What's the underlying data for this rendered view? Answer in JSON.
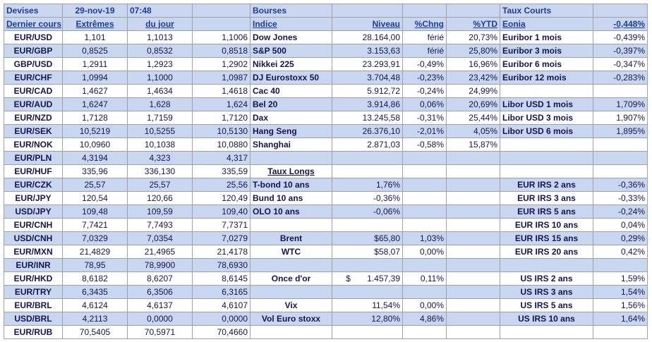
{
  "table": {
    "rows": [
      [
        "Devises",
        "29-nov-19",
        "07:48",
        null,
        "Bourses",
        null,
        null,
        null,
        "Taux Courts",
        null
      ],
      [
        "Dernier cours",
        "Extrêmes",
        "du jour",
        null,
        "Indice",
        "Niveau",
        "%Chng",
        "%YTD",
        "Eonia",
        "-0,448%"
      ],
      [
        "EUR/USD",
        "1,101",
        "1,1013",
        "1,1006",
        "Dow Jones",
        "28.164,00",
        "férié",
        "20,73%",
        "Euribor 1 mois",
        "-0,439%"
      ],
      [
        "EUR/GBP",
        "0,8525",
        "0,8532",
        "0,8518",
        "S&P 500",
        "3.153,63",
        "férié",
        "25,80%",
        "Euribor 3 mois",
        "-0,397%"
      ],
      [
        "GBP/USD",
        "1,2911",
        "1,2923",
        "1,2902",
        "Nikkei 225",
        "23.293,91",
        "-0,49%",
        "16,96%",
        "Euribor 6 mois",
        "-0,347%"
      ],
      [
        "EUR/CHF",
        "1,0994",
        "1,1000",
        "1,0987",
        "DJ Eurostoxx 50",
        "3.704,48",
        "-0,23%",
        "23,42%",
        "Euribor 12 mois",
        "-0,283%"
      ],
      [
        "EUR/CAD",
        "1,4627",
        "1,4634",
        "1,4618",
        "Cac 40",
        "5.912,72",
        "-0,24%",
        "24,99%",
        null,
        null
      ],
      [
        "EUR/AUD",
        "1,6247",
        "1,628",
        "1,624",
        "Bel 20",
        "3.914,86",
        "0,06%",
        "20,69%",
        "Libor USD 1 mois",
        "1,709%"
      ],
      [
        "EUR/NZD",
        "1,7128",
        "1,7159",
        "1,7120",
        "Dax",
        "13.245,58",
        "-0,31%",
        "25,44%",
        "Libor USD 3 mois",
        "1,907%"
      ],
      [
        "EUR/SEK",
        "10,5219",
        "10,5255",
        "10,5130",
        "Hang Seng",
        "26.376,10",
        "-2,01%",
        "4,05%",
        "Libor USD 6 mois",
        "1,895%"
      ],
      [
        "EUR/NOK",
        "10,0960",
        "10,1038",
        "10,0880",
        "Shanghai",
        "2.871,03",
        "-0,58%",
        "15,87%",
        null,
        null
      ],
      [
        "EUR/PLN",
        "4,3194",
        "4,323",
        "4,317",
        null,
        null,
        null,
        null,
        null,
        null
      ],
      [
        "EUR/HUF",
        "335,96",
        "336,130",
        "335,59",
        "Taux Longs",
        null,
        null,
        null,
        null,
        null
      ],
      [
        "EUR/CZK",
        "25,57",
        "25,57",
        "25,56",
        "T-bond 10 ans",
        "1,76%",
        null,
        null,
        "EUR IRS 2 ans",
        "-0,36%"
      ],
      [
        "EUR/JPY",
        "120,54",
        "120,66",
        "120,49",
        "Bund 10 ans",
        "-0,36%",
        null,
        null,
        "EUR IRS 3 ans",
        "-0,33%"
      ],
      [
        "USD/JPY",
        "109,48",
        "109,59",
        "109,40",
        "OLO 10 ans",
        "-0,06%",
        null,
        null,
        "EUR IRS 5 ans",
        "-0,24%"
      ],
      [
        "EUR/CNH",
        "7,7421",
        "7,7493",
        "7,7371",
        null,
        null,
        null,
        null,
        "EUR IRS 10 ans",
        "0,04%"
      ],
      [
        "USD/CNH",
        "7,0329",
        "7,0354",
        "7,0279",
        "Brent",
        "$65,80",
        "1,03%",
        null,
        "EUR IRS 15 ans",
        "0,29%"
      ],
      [
        "EUR/MXN",
        "21,4829",
        "21,4965",
        "21,4178",
        "WTC",
        "$58,07",
        "0,00%",
        null,
        "EUR IRS 20 ans",
        "0,42%"
      ],
      [
        "EUR/INR",
        "78,95",
        "78,9900",
        "78,6930",
        null,
        null,
        null,
        null,
        null,
        null
      ],
      [
        "EUR/HKD",
        "8,6182",
        "8,6207",
        "8,6145",
        "Once d'or",
        "$       1.457,39",
        "0,11%",
        null,
        "US IRS 2 ans",
        "1,59%"
      ],
      [
        "EUR/TRY",
        "6,3435",
        "6,3506",
        "6,3165",
        null,
        null,
        null,
        null,
        "US IRS 3 ans",
        "1,54%"
      ],
      [
        "EUR/BRL",
        "4,6124",
        "4,6137",
        "4,6107",
        "Vix",
        "11,54%",
        "0,00%",
        null,
        "US IRS 5 ans",
        "1,56%"
      ],
      [
        "USD/BRL",
        "4,2113",
        "0,0000",
        "0,0000",
        "Vol Euro stoxx",
        "12,80%",
        "4,86%",
        null,
        "US IRS 10 ans",
        "1,64%"
      ],
      [
        "EUR/RUB",
        "70,5405",
        "70,5971",
        "70,4660",
        null,
        null,
        null,
        null,
        null,
        null
      ]
    ]
  }
}
